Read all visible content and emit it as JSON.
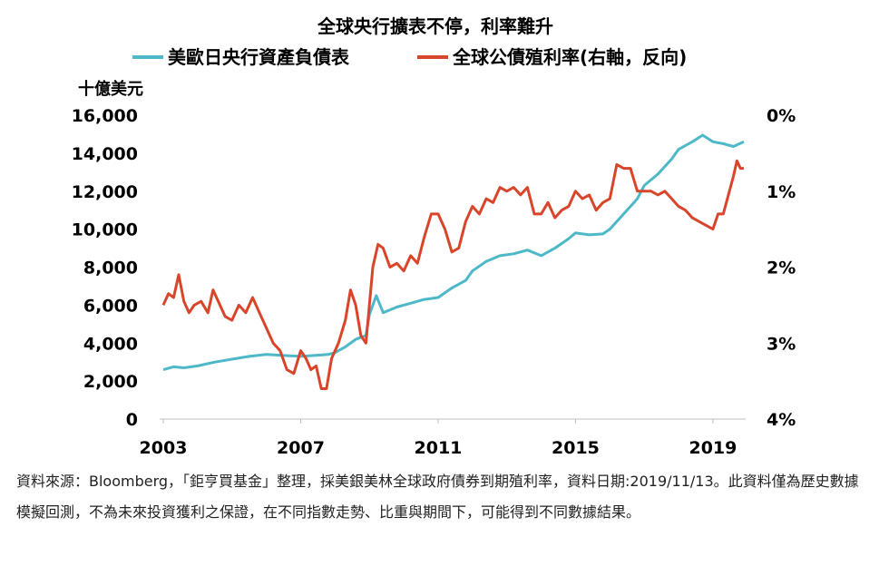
{
  "chart_data": {
    "type": "line",
    "title": "全球央行擴表不停，利率難升",
    "left_axis_unit": "十億美元",
    "xlim": [
      2003,
      2019.9
    ],
    "left_ylim": [
      0,
      16000
    ],
    "right_ylim": [
      0,
      4
    ],
    "right_axis_reversed": true,
    "grid": false,
    "legend_position": "top",
    "x_tick_labels": [
      "2003",
      "2007",
      "2011",
      "2015",
      "2019"
    ],
    "left_tick_labels": [
      "0",
      "2,000",
      "4,000",
      "6,000",
      "8,000",
      "10,000",
      "12,000",
      "14,000",
      "16,000"
    ],
    "right_tick_labels": [
      "0%",
      "1%",
      "2%",
      "3%",
      "4%"
    ],
    "series": [
      {
        "name": "美歐日央行資產負債表",
        "axis": "left",
        "color": "#4db8c8",
        "points": [
          [
            2003.0,
            2600
          ],
          [
            2003.3,
            2750
          ],
          [
            2003.6,
            2700
          ],
          [
            2004.0,
            2800
          ],
          [
            2004.5,
            3000
          ],
          [
            2005.0,
            3150
          ],
          [
            2005.5,
            3300
          ],
          [
            2006.0,
            3400
          ],
          [
            2006.5,
            3350
          ],
          [
            2007.0,
            3300
          ],
          [
            2007.4,
            3350
          ],
          [
            2007.8,
            3400
          ],
          [
            2008.0,
            3500
          ],
          [
            2008.3,
            3800
          ],
          [
            2008.6,
            4200
          ],
          [
            2008.9,
            4400
          ],
          [
            2009.0,
            5500
          ],
          [
            2009.2,
            6500
          ],
          [
            2009.4,
            5600
          ],
          [
            2009.8,
            5900
          ],
          [
            2010.2,
            6100
          ],
          [
            2010.6,
            6300
          ],
          [
            2011.0,
            6400
          ],
          [
            2011.4,
            6900
          ],
          [
            2011.8,
            7300
          ],
          [
            2012.0,
            7800
          ],
          [
            2012.4,
            8300
          ],
          [
            2012.8,
            8600
          ],
          [
            2013.2,
            8700
          ],
          [
            2013.6,
            8900
          ],
          [
            2014.0,
            8600
          ],
          [
            2014.4,
            9000
          ],
          [
            2014.8,
            9500
          ],
          [
            2015.0,
            9800
          ],
          [
            2015.4,
            9700
          ],
          [
            2015.8,
            9750
          ],
          [
            2016.0,
            10000
          ],
          [
            2016.4,
            10800
          ],
          [
            2016.8,
            11600
          ],
          [
            2017.0,
            12300
          ],
          [
            2017.4,
            12900
          ],
          [
            2017.8,
            13700
          ],
          [
            2018.0,
            14200
          ],
          [
            2018.4,
            14600
          ],
          [
            2018.7,
            14950
          ],
          [
            2019.0,
            14600
          ],
          [
            2019.3,
            14500
          ],
          [
            2019.6,
            14350
          ],
          [
            2019.9,
            14600
          ]
        ]
      },
      {
        "name": "全球公債殖利率(右軸，反向)",
        "axis": "right",
        "color": "#d9452a",
        "points": [
          [
            2003.0,
            2.5
          ],
          [
            2003.15,
            2.35
          ],
          [
            2003.3,
            2.4
          ],
          [
            2003.45,
            2.1
          ],
          [
            2003.6,
            2.45
          ],
          [
            2003.75,
            2.6
          ],
          [
            2003.9,
            2.5
          ],
          [
            2004.1,
            2.45
          ],
          [
            2004.3,
            2.6
          ],
          [
            2004.45,
            2.3
          ],
          [
            2004.6,
            2.45
          ],
          [
            2004.8,
            2.65
          ],
          [
            2005.0,
            2.7
          ],
          [
            2005.2,
            2.5
          ],
          [
            2005.4,
            2.6
          ],
          [
            2005.6,
            2.4
          ],
          [
            2005.8,
            2.6
          ],
          [
            2006.0,
            2.8
          ],
          [
            2006.2,
            3.0
          ],
          [
            2006.4,
            3.1
          ],
          [
            2006.6,
            3.35
          ],
          [
            2006.8,
            3.4
          ],
          [
            2007.0,
            3.1
          ],
          [
            2007.15,
            3.2
          ],
          [
            2007.3,
            3.35
          ],
          [
            2007.45,
            3.3
          ],
          [
            2007.6,
            3.6
          ],
          [
            2007.75,
            3.6
          ],
          [
            2007.9,
            3.2
          ],
          [
            2008.1,
            3.0
          ],
          [
            2008.3,
            2.7
          ],
          [
            2008.45,
            2.3
          ],
          [
            2008.6,
            2.5
          ],
          [
            2008.75,
            2.9
          ],
          [
            2008.9,
            3.0
          ],
          [
            2009.1,
            2.0
          ],
          [
            2009.25,
            1.7
          ],
          [
            2009.4,
            1.75
          ],
          [
            2009.6,
            2.0
          ],
          [
            2009.8,
            1.95
          ],
          [
            2010.0,
            2.05
          ],
          [
            2010.2,
            1.85
          ],
          [
            2010.4,
            1.95
          ],
          [
            2010.6,
            1.6
          ],
          [
            2010.8,
            1.3
          ],
          [
            2011.0,
            1.3
          ],
          [
            2011.2,
            1.5
          ],
          [
            2011.4,
            1.8
          ],
          [
            2011.6,
            1.75
          ],
          [
            2011.8,
            1.4
          ],
          [
            2012.0,
            1.2
          ],
          [
            2012.2,
            1.3
          ],
          [
            2012.4,
            1.1
          ],
          [
            2012.6,
            1.15
          ],
          [
            2012.8,
            0.95
          ],
          [
            2013.0,
            1.0
          ],
          [
            2013.2,
            0.95
          ],
          [
            2013.4,
            1.05
          ],
          [
            2013.6,
            0.95
          ],
          [
            2013.8,
            1.3
          ],
          [
            2014.0,
            1.3
          ],
          [
            2014.2,
            1.15
          ],
          [
            2014.4,
            1.35
          ],
          [
            2014.6,
            1.25
          ],
          [
            2014.8,
            1.2
          ],
          [
            2015.0,
            1.0
          ],
          [
            2015.2,
            1.1
          ],
          [
            2015.4,
            1.05
          ],
          [
            2015.6,
            1.25
          ],
          [
            2015.8,
            1.15
          ],
          [
            2016.0,
            1.1
          ],
          [
            2016.2,
            0.65
          ],
          [
            2016.4,
            0.7
          ],
          [
            2016.6,
            0.7
          ],
          [
            2016.8,
            1.0
          ],
          [
            2017.0,
            1.0
          ],
          [
            2017.2,
            1.0
          ],
          [
            2017.4,
            1.05
          ],
          [
            2017.6,
            1.0
          ],
          [
            2017.8,
            1.1
          ],
          [
            2018.0,
            1.2
          ],
          [
            2018.2,
            1.25
          ],
          [
            2018.4,
            1.35
          ],
          [
            2018.6,
            1.4
          ],
          [
            2018.8,
            1.45
          ],
          [
            2019.0,
            1.5
          ],
          [
            2019.15,
            1.3
          ],
          [
            2019.3,
            1.3
          ],
          [
            2019.45,
            1.05
          ],
          [
            2019.6,
            0.8
          ],
          [
            2019.7,
            0.6
          ],
          [
            2019.8,
            0.7
          ],
          [
            2019.9,
            0.7
          ]
        ]
      }
    ]
  },
  "source_note": {
    "text": "資料來源：Bloomberg，「鉅亨買基金」整理，採美銀美林全球政府債券到期殖利率，資料日期:2019/11/13。此資料僅為歷史數據模擬回測，不為未來投資獲利之保證，在不同指數走勢、比重與期間下，可能得到不同數據結果。"
  }
}
